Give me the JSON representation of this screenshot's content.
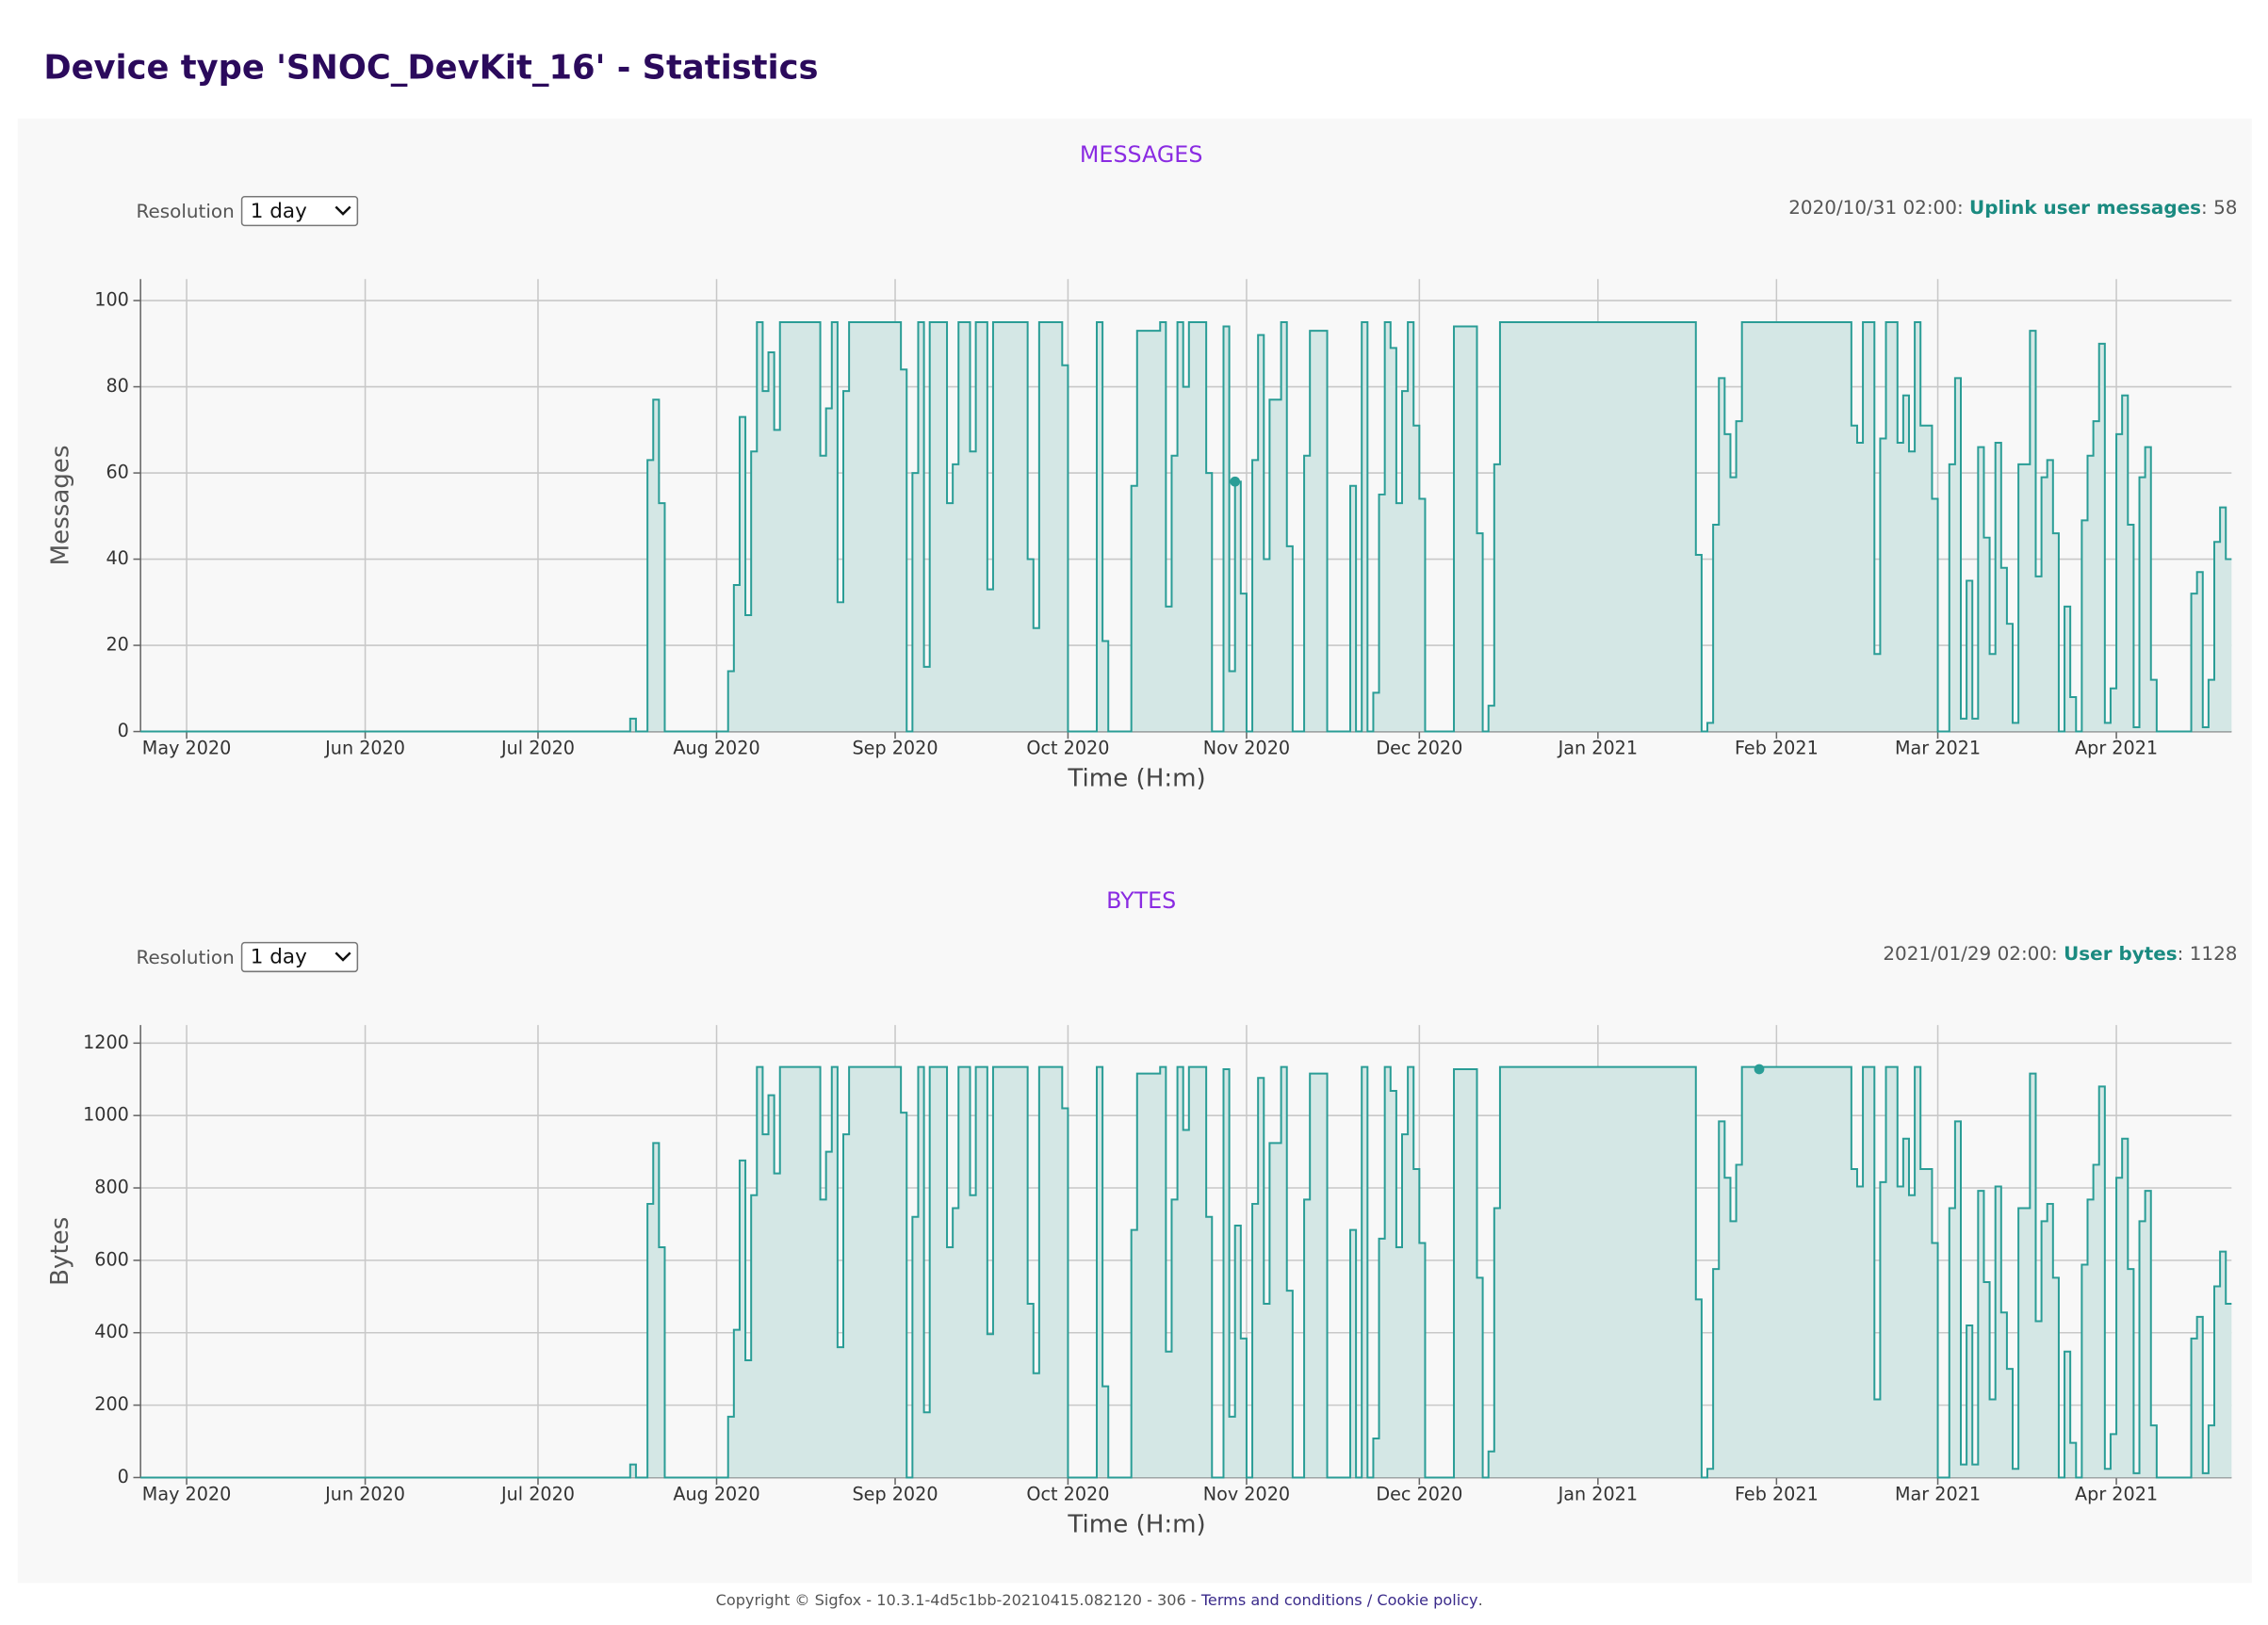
{
  "header": {
    "title": "Device type 'SNOC_DevKit_16' - Statistics"
  },
  "controls": [
    {
      "label": "Resolution",
      "value": "1 day"
    },
    {
      "label": "Resolution",
      "value": "1 day"
    }
  ],
  "footer": {
    "copyright": "Copyright © Sigfox - 10.3.1-4d5c1bb-20210415.082120 - 306 - ",
    "terms": "Terms and conditions",
    "separator": " / ",
    "cookie": "Cookie policy",
    "end": "."
  },
  "chart_data": [
    {
      "type": "line",
      "title": "MESSAGES",
      "x_label": "Time (H:m)",
      "y_label": "Messages",
      "grid": true,
      "step": true,
      "fill": true,
      "xlim": [
        -8,
        355
      ],
      "ylim": [
        0,
        105
      ],
      "yticks": [
        0,
        20,
        40,
        60,
        80,
        100
      ],
      "xticks": [
        {
          "value": 0,
          "label": "May 2020"
        },
        {
          "value": 31,
          "label": "Jun 2020"
        },
        {
          "value": 61,
          "label": "Jul 2020"
        },
        {
          "value": 92,
          "label": "Aug 2020"
        },
        {
          "value": 123,
          "label": "Sep 2020"
        },
        {
          "value": 153,
          "label": "Oct 2020"
        },
        {
          "value": 184,
          "label": "Nov 2020"
        },
        {
          "value": 214,
          "label": "Dec 2020"
        },
        {
          "value": 245,
          "label": "Jan 2021"
        },
        {
          "value": 276,
          "label": "Feb 2021"
        },
        {
          "value": 304,
          "label": "Mar 2021"
        },
        {
          "value": 335,
          "label": "Apr 2021"
        }
      ],
      "hover": {
        "date": "2020/10/31 02:00",
        "label": "Uplink user messages",
        "value": 58,
        "x": 182
      },
      "x": [
        -8,
        77,
        78,
        80,
        81,
        82,
        83,
        94,
        95,
        96,
        97,
        98,
        99,
        100,
        101,
        102,
        103,
        110,
        111,
        112,
        113,
        114,
        115,
        124,
        125,
        126,
        127,
        128,
        129,
        132,
        133,
        134,
        136,
        137,
        139,
        140,
        146,
        147,
        148,
        152,
        153,
        158,
        159,
        160,
        164,
        165,
        169,
        170,
        171,
        172,
        173,
        174,
        177,
        178,
        180,
        181,
        182,
        183,
        184,
        185,
        186,
        187,
        188,
        190,
        191,
        192,
        194,
        195,
        198,
        202,
        203,
        204,
        205,
        206,
        207,
        208,
        209,
        210,
        211,
        212,
        213,
        214,
        215,
        220,
        224,
        225,
        226,
        227,
        228,
        262,
        263,
        264,
        265,
        266,
        267,
        268,
        269,
        270,
        289,
        290,
        291,
        293,
        294,
        295,
        297,
        298,
        299,
        300,
        301,
        303,
        304,
        306,
        307,
        308,
        309,
        310,
        311,
        312,
        313,
        314,
        315,
        316,
        317,
        318,
        319,
        320,
        321,
        322,
        323,
        324,
        325,
        326,
        327,
        328,
        329,
        330,
        331,
        332,
        333,
        334,
        335,
        336,
        337,
        338,
        339,
        340,
        341,
        342,
        348,
        349,
        350,
        351,
        352,
        353,
        354
      ],
      "series": [
        {
          "name": "Uplink user messages",
          "color": "#2a9d96",
          "fill_color": "#d4e7e5",
          "values": [
            0,
            3,
            0,
            63,
            77,
            53,
            0,
            14,
            34,
            73,
            27,
            65,
            95,
            79,
            88,
            70,
            95,
            64,
            75,
            95,
            30,
            79,
            95,
            84,
            0,
            60,
            95,
            15,
            95,
            53,
            62,
            95,
            65,
            95,
            33,
            95,
            40,
            24,
            95,
            85,
            0,
            95,
            21,
            0,
            57,
            93,
            95,
            29,
            64,
            95,
            80,
            95,
            60,
            0,
            94,
            14,
            58,
            32,
            0,
            63,
            92,
            40,
            77,
            95,
            43,
            0,
            64,
            93,
            0,
            57,
            0,
            95,
            0,
            9,
            55,
            95,
            89,
            53,
            79,
            95,
            71,
            54,
            0,
            94,
            46,
            0,
            6,
            62,
            95,
            41,
            0,
            2,
            48,
            82,
            69,
            59,
            72,
            95,
            71,
            67,
            95,
            18,
            68,
            95,
            67,
            78,
            65,
            95,
            71,
            54,
            0,
            62,
            82,
            3,
            35,
            3,
            66,
            45,
            18,
            67,
            38,
            25,
            2,
            62,
            62,
            93,
            36,
            59,
            63,
            46,
            0,
            29,
            8,
            0,
            49,
            64,
            72,
            90,
            2,
            10,
            69,
            78,
            48,
            1,
            59,
            66,
            12,
            0,
            32,
            37,
            1,
            12,
            44,
            52,
            40
          ]
        }
      ]
    },
    {
      "type": "line",
      "title": "BYTES",
      "x_label": "Time (H:m)",
      "y_label": "Bytes",
      "grid": true,
      "step": true,
      "fill": true,
      "xlim": [
        -8,
        355
      ],
      "ylim": [
        0,
        1250
      ],
      "yticks": [
        0,
        200,
        400,
        600,
        800,
        1000,
        1200
      ],
      "xticks": [
        {
          "value": 0,
          "label": "May 2020"
        },
        {
          "value": 31,
          "label": "Jun 2020"
        },
        {
          "value": 61,
          "label": "Jul 2020"
        },
        {
          "value": 92,
          "label": "Aug 2020"
        },
        {
          "value": 123,
          "label": "Sep 2020"
        },
        {
          "value": 153,
          "label": "Oct 2020"
        },
        {
          "value": 184,
          "label": "Nov 2020"
        },
        {
          "value": 214,
          "label": "Dec 2020"
        },
        {
          "value": 245,
          "label": "Jan 2021"
        },
        {
          "value": 276,
          "label": "Feb 2021"
        },
        {
          "value": 304,
          "label": "Mar 2021"
        },
        {
          "value": 335,
          "label": "Apr 2021"
        }
      ],
      "hover": {
        "date": "2021/01/29 02:00",
        "label": "User bytes",
        "value": 1128,
        "x": 273
      },
      "x": [
        -8,
        77,
        78,
        80,
        81,
        82,
        83,
        94,
        95,
        96,
        97,
        98,
        99,
        100,
        101,
        102,
        103,
        110,
        111,
        112,
        113,
        114,
        115,
        124,
        125,
        126,
        127,
        128,
        129,
        132,
        133,
        134,
        136,
        137,
        139,
        140,
        146,
        147,
        148,
        152,
        153,
        158,
        159,
        160,
        164,
        165,
        169,
        170,
        171,
        172,
        173,
        174,
        177,
        178,
        180,
        181,
        182,
        183,
        184,
        185,
        186,
        187,
        188,
        190,
        191,
        192,
        194,
        195,
        198,
        202,
        203,
        204,
        205,
        206,
        207,
        208,
        209,
        210,
        211,
        212,
        213,
        214,
        215,
        220,
        224,
        225,
        226,
        227,
        228,
        262,
        263,
        264,
        265,
        266,
        267,
        268,
        269,
        270,
        289,
        290,
        291,
        293,
        294,
        295,
        297,
        298,
        299,
        300,
        301,
        303,
        304,
        306,
        307,
        308,
        309,
        310,
        311,
        312,
        313,
        314,
        315,
        316,
        317,
        318,
        319,
        320,
        321,
        322,
        323,
        324,
        325,
        326,
        327,
        328,
        329,
        330,
        331,
        332,
        333,
        334,
        335,
        336,
        337,
        338,
        339,
        340,
        341,
        342,
        348,
        349,
        350,
        351,
        352,
        353,
        354
      ],
      "series": [
        {
          "name": "User bytes",
          "color": "#2a9d96",
          "fill_color": "#d4e7e5",
          "values": [
            0,
            36,
            0,
            756,
            924,
            636,
            0,
            168,
            408,
            876,
            324,
            780,
            1134,
            948,
            1056,
            840,
            1134,
            768,
            900,
            1134,
            360,
            948,
            1134,
            1008,
            0,
            720,
            1134,
            180,
            1134,
            636,
            744,
            1134,
            780,
            1134,
            396,
            1134,
            480,
            288,
            1134,
            1020,
            0,
            1134,
            252,
            0,
            684,
            1116,
            1134,
            348,
            768,
            1134,
            960,
            1134,
            720,
            0,
            1128,
            168,
            696,
            384,
            0,
            756,
            1104,
            480,
            924,
            1134,
            516,
            0,
            768,
            1116,
            0,
            684,
            0,
            1134,
            0,
            108,
            660,
            1134,
            1068,
            636,
            948,
            1134,
            852,
            648,
            0,
            1128,
            552,
            0,
            72,
            744,
            1134,
            492,
            0,
            24,
            576,
            984,
            828,
            708,
            864,
            1134,
            852,
            804,
            1134,
            216,
            816,
            1134,
            804,
            936,
            780,
            1134,
            852,
            648,
            0,
            744,
            984,
            36,
            420,
            36,
            792,
            540,
            216,
            804,
            456,
            300,
            24,
            744,
            744,
            1116,
            432,
            708,
            756,
            552,
            0,
            348,
            96,
            0,
            588,
            768,
            864,
            1080,
            24,
            120,
            828,
            936,
            576,
            12,
            708,
            792,
            144,
            0,
            384,
            444,
            12,
            144,
            528,
            624,
            480
          ]
        }
      ]
    }
  ]
}
